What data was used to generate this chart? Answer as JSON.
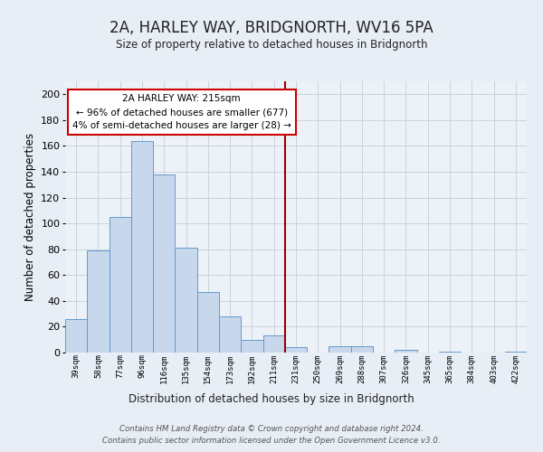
{
  "title": "2A, HARLEY WAY, BRIDGNORTH, WV16 5PA",
  "subtitle": "Size of property relative to detached houses in Bridgnorth",
  "xlabel": "Distribution of detached houses by size in Bridgnorth",
  "ylabel": "Number of detached properties",
  "bar_labels": [
    "39sqm",
    "58sqm",
    "77sqm",
    "96sqm",
    "116sqm",
    "135sqm",
    "154sqm",
    "173sqm",
    "192sqm",
    "211sqm",
    "231sqm",
    "250sqm",
    "269sqm",
    "288sqm",
    "307sqm",
    "326sqm",
    "345sqm",
    "365sqm",
    "384sqm",
    "403sqm",
    "422sqm"
  ],
  "bar_values": [
    26,
    79,
    105,
    164,
    138,
    81,
    47,
    28,
    10,
    13,
    4,
    0,
    5,
    5,
    0,
    2,
    0,
    1,
    0,
    0,
    1
  ],
  "bar_color": "#c8d8ec",
  "bar_edge_color": "#6699cc",
  "ylim": [
    0,
    210
  ],
  "yticks": [
    0,
    20,
    40,
    60,
    80,
    100,
    120,
    140,
    160,
    180,
    200
  ],
  "vline_x": 9.5,
  "vline_color": "#990000",
  "annotation_title": "2A HARLEY WAY: 215sqm",
  "annotation_line1": "← 96% of detached houses are smaller (677)",
  "annotation_line2": "4% of semi-detached houses are larger (28) →",
  "annotation_box_color": "#ffffff",
  "annotation_box_edge": "#cc0000",
  "footer_line1": "Contains HM Land Registry data © Crown copyright and database right 2024.",
  "footer_line2": "Contains public sector information licensed under the Open Government Licence v3.0.",
  "background_color": "#e8eef5",
  "plot_bg_color": "#edf2f8",
  "grid_color": "#c5cdd8"
}
